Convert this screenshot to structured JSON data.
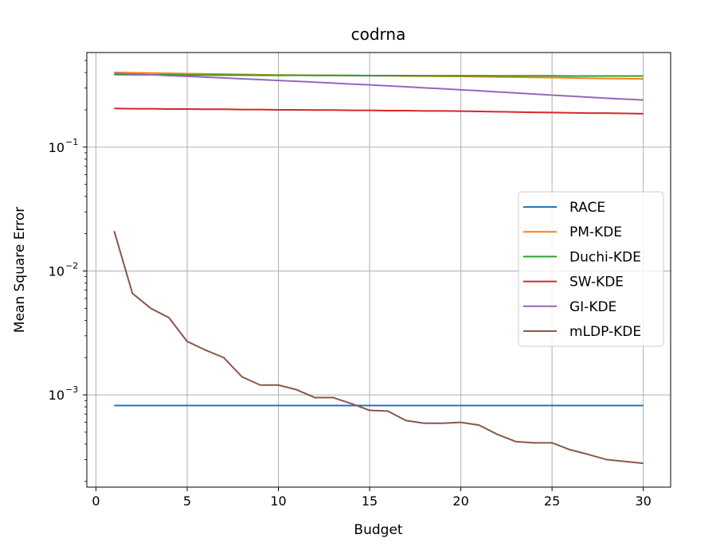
{
  "chart_data": {
    "type": "line",
    "title": "codrna",
    "xlabel": "Budget",
    "ylabel": "Mean Square Error",
    "yscale": "log",
    "xlim": [
      -0.5,
      31.5
    ],
    "ylim": [
      0.00018,
      0.58
    ],
    "grid": true,
    "legend_position": "center-right",
    "x_ticks": [
      {
        "value": 0,
        "label": "0"
      },
      {
        "value": 5,
        "label": "5"
      },
      {
        "value": 10,
        "label": "10"
      },
      {
        "value": 15,
        "label": "15"
      },
      {
        "value": 20,
        "label": "20"
      },
      {
        "value": 25,
        "label": "25"
      },
      {
        "value": 30,
        "label": "30"
      }
    ],
    "y_ticks": [
      {
        "value": 0.1,
        "base": "10",
        "exp": "−1"
      },
      {
        "value": 0.01,
        "base": "10",
        "exp": "−2"
      },
      {
        "value": 0.001,
        "base": "10",
        "exp": "−3"
      }
    ],
    "x": [
      1,
      2,
      3,
      4,
      5,
      6,
      7,
      8,
      9,
      10,
      11,
      12,
      13,
      14,
      15,
      16,
      17,
      18,
      19,
      20,
      21,
      22,
      23,
      24,
      25,
      26,
      27,
      28,
      29,
      30
    ],
    "series": [
      {
        "name": "RACE",
        "color": "#1f77b4",
        "values": [
          0.00082,
          0.00082,
          0.00082,
          0.00082,
          0.00082,
          0.00082,
          0.00082,
          0.00082,
          0.00082,
          0.00082,
          0.00082,
          0.00082,
          0.00082,
          0.00082,
          0.00082,
          0.00082,
          0.00082,
          0.00082,
          0.00082,
          0.00082,
          0.00082,
          0.00082,
          0.00082,
          0.00082,
          0.00082,
          0.00082,
          0.00082,
          0.00082,
          0.00082,
          0.00082
        ]
      },
      {
        "name": "PM-KDE",
        "color": "#ff7f0e",
        "values": [
          0.4,
          0.398,
          0.396,
          0.394,
          0.392,
          0.39,
          0.388,
          0.386,
          0.384,
          0.382,
          0.381,
          0.38,
          0.379,
          0.378,
          0.377,
          0.376,
          0.375,
          0.374,
          0.373,
          0.372,
          0.37,
          0.368,
          0.367,
          0.365,
          0.364,
          0.362,
          0.36,
          0.358,
          0.357,
          0.355
        ]
      },
      {
        "name": "Duchi-KDE",
        "color": "#2ca02c",
        "values": [
          0.385,
          0.384,
          0.383,
          0.383,
          0.382,
          0.382,
          0.381,
          0.381,
          0.38,
          0.38,
          0.38,
          0.379,
          0.379,
          0.379,
          0.378,
          0.378,
          0.378,
          0.377,
          0.377,
          0.377,
          0.377,
          0.376,
          0.376,
          0.376,
          0.376,
          0.375,
          0.375,
          0.375,
          0.375,
          0.375
        ]
      },
      {
        "name": "SW-KDE",
        "color": "#d62728",
        "values": [
          0.205,
          0.204,
          0.204,
          0.203,
          0.203,
          0.202,
          0.202,
          0.201,
          0.201,
          0.2,
          0.2,
          0.199,
          0.199,
          0.198,
          0.198,
          0.197,
          0.197,
          0.196,
          0.196,
          0.195,
          0.194,
          0.193,
          0.192,
          0.191,
          0.19,
          0.189,
          0.188,
          0.188,
          0.187,
          0.186
        ]
      },
      {
        "name": "GI-KDE",
        "color": "#9467bd",
        "values": [
          0.395,
          0.389,
          0.384,
          0.378,
          0.373,
          0.367,
          0.362,
          0.356,
          0.351,
          0.345,
          0.34,
          0.334,
          0.329,
          0.323,
          0.318,
          0.312,
          0.307,
          0.301,
          0.296,
          0.29,
          0.285,
          0.279,
          0.274,
          0.268,
          0.263,
          0.258,
          0.253,
          0.248,
          0.244,
          0.24
        ]
      },
      {
        "name": "mLDP-KDE",
        "color": "#8c564b",
        "values": [
          0.021,
          0.0066,
          0.005,
          0.0042,
          0.0027,
          0.0023,
          0.002,
          0.0014,
          0.0012,
          0.0012,
          0.0011,
          0.00095,
          0.00095,
          0.00085,
          0.00075,
          0.00074,
          0.00062,
          0.00059,
          0.00059,
          0.0006,
          0.00057,
          0.00048,
          0.00042,
          0.00041,
          0.00041,
          0.00036,
          0.00033,
          0.0003,
          0.00029,
          0.00028
        ]
      }
    ]
  }
}
